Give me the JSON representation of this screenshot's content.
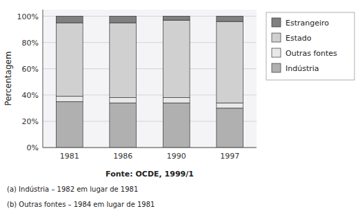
{
  "chart_data": {
    "type": "bar",
    "stacked": true,
    "categories": [
      "1981",
      "1986",
      "1990",
      "1997"
    ],
    "series": [
      {
        "name": "Indústria",
        "color": "#b0b0b0",
        "values": [
          35,
          34,
          34,
          30
        ]
      },
      {
        "name": "Outras fontes",
        "color": "#e8e8e8",
        "values": [
          4,
          4,
          4,
          4
        ]
      },
      {
        "name": "Estado",
        "color": "#d0d0d0",
        "values": [
          56,
          57,
          59,
          62
        ]
      },
      {
        "name": "Estrangeiro",
        "color": "#808080",
        "values": [
          5,
          5,
          3,
          4
        ]
      }
    ],
    "y_label": "Percentagem",
    "ylim": [
      0,
      105
    ],
    "yticks": [
      {
        "value": 0,
        "label": "0%"
      },
      {
        "value": 20,
        "label": "20%"
      },
      {
        "value": 40,
        "label": "40%"
      },
      {
        "value": 60,
        "label": "60%"
      },
      {
        "value": 80,
        "label": "80%"
      },
      {
        "value": 100,
        "label": "100%"
      }
    ],
    "grid": true,
    "legend": "right",
    "annotations": [
      "Fonte: OCDE, 1999/1",
      "(a)   Indústria – 1982 em lugar de 1981",
      "(b)   Outras fontes – 1984 em lugar de 1981"
    ]
  }
}
